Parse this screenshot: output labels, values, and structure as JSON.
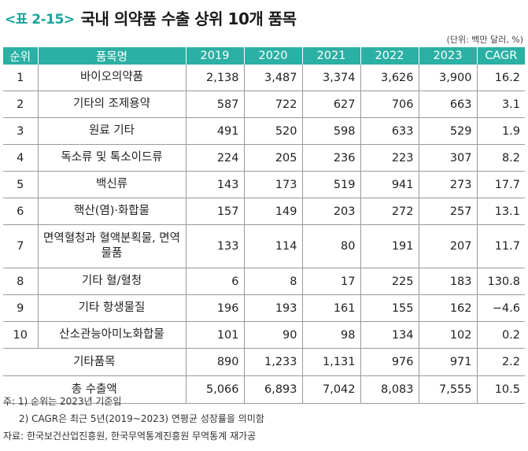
{
  "title": {
    "label": "<표 2-15>",
    "text": "국내 의약품 수출 상위 10개 품목"
  },
  "unit": "(단위: 백만 달러, %)",
  "table": {
    "headers": [
      "순위",
      "품목명",
      "2019",
      "2020",
      "2021",
      "2022",
      "2023",
      "CAGR"
    ],
    "rows": [
      {
        "rank": "1",
        "name": "바이오의약품",
        "v2019": "2,138",
        "v2020": "3,487",
        "v2021": "3,374",
        "v2022": "3,626",
        "v2023": "3,900",
        "cagr": "16.2"
      },
      {
        "rank": "2",
        "name": "기타의 조제용약",
        "v2019": "587",
        "v2020": "722",
        "v2021": "627",
        "v2022": "706",
        "v2023": "663",
        "cagr": "3.1"
      },
      {
        "rank": "3",
        "name": "원료 기타",
        "v2019": "491",
        "v2020": "520",
        "v2021": "598",
        "v2022": "633",
        "v2023": "529",
        "cagr": "1.9"
      },
      {
        "rank": "4",
        "name": "독소류 및 톡소이드류",
        "v2019": "224",
        "v2020": "205",
        "v2021": "236",
        "v2022": "223",
        "v2023": "307",
        "cagr": "8.2"
      },
      {
        "rank": "5",
        "name": "백신류",
        "v2019": "143",
        "v2020": "173",
        "v2021": "519",
        "v2022": "941",
        "v2023": "273",
        "cagr": "17.7"
      },
      {
        "rank": "6",
        "name": "핵산(염)·화합물",
        "v2019": "157",
        "v2020": "149",
        "v2021": "203",
        "v2022": "272",
        "v2023": "257",
        "cagr": "13.1"
      },
      {
        "rank": "7",
        "name": "면역혈청과 혈액분획물, 면역물품",
        "v2019": "133",
        "v2020": "114",
        "v2021": "80",
        "v2022": "191",
        "v2023": "207",
        "cagr": "11.7"
      },
      {
        "rank": "8",
        "name": "기타 혈/혈청",
        "v2019": "6",
        "v2020": "8",
        "v2021": "17",
        "v2022": "225",
        "v2023": "183",
        "cagr": "130.8"
      },
      {
        "rank": "9",
        "name": "기타 항생물질",
        "v2019": "196",
        "v2020": "193",
        "v2021": "161",
        "v2022": "155",
        "v2023": "162",
        "cagr": "−4.6"
      },
      {
        "rank": "10",
        "name": "산소관능아미노화합물",
        "v2019": "101",
        "v2020": "90",
        "v2021": "98",
        "v2022": "134",
        "v2023": "102",
        "cagr": "0.2"
      }
    ],
    "others": {
      "name": "기타품목",
      "v2019": "890",
      "v2020": "1,233",
      "v2021": "1,131",
      "v2022": "976",
      "v2023": "971",
      "cagr": "2.2"
    },
    "total": {
      "name": "총 수출액",
      "v2019": "5,066",
      "v2020": "6,893",
      "v2021": "7,042",
      "v2022": "8,083",
      "v2023": "7,555",
      "cagr": "10.5"
    }
  },
  "notes": {
    "note1": "주: 1) 순위는 2023년 기준임",
    "note2": "2) CAGR은 최근 5년(2019~2023) 연평균 성장률을 의미함",
    "source": "자료: 한국보건산업진흥원, 한국무역통계진흥원 무역통계 재가공"
  }
}
